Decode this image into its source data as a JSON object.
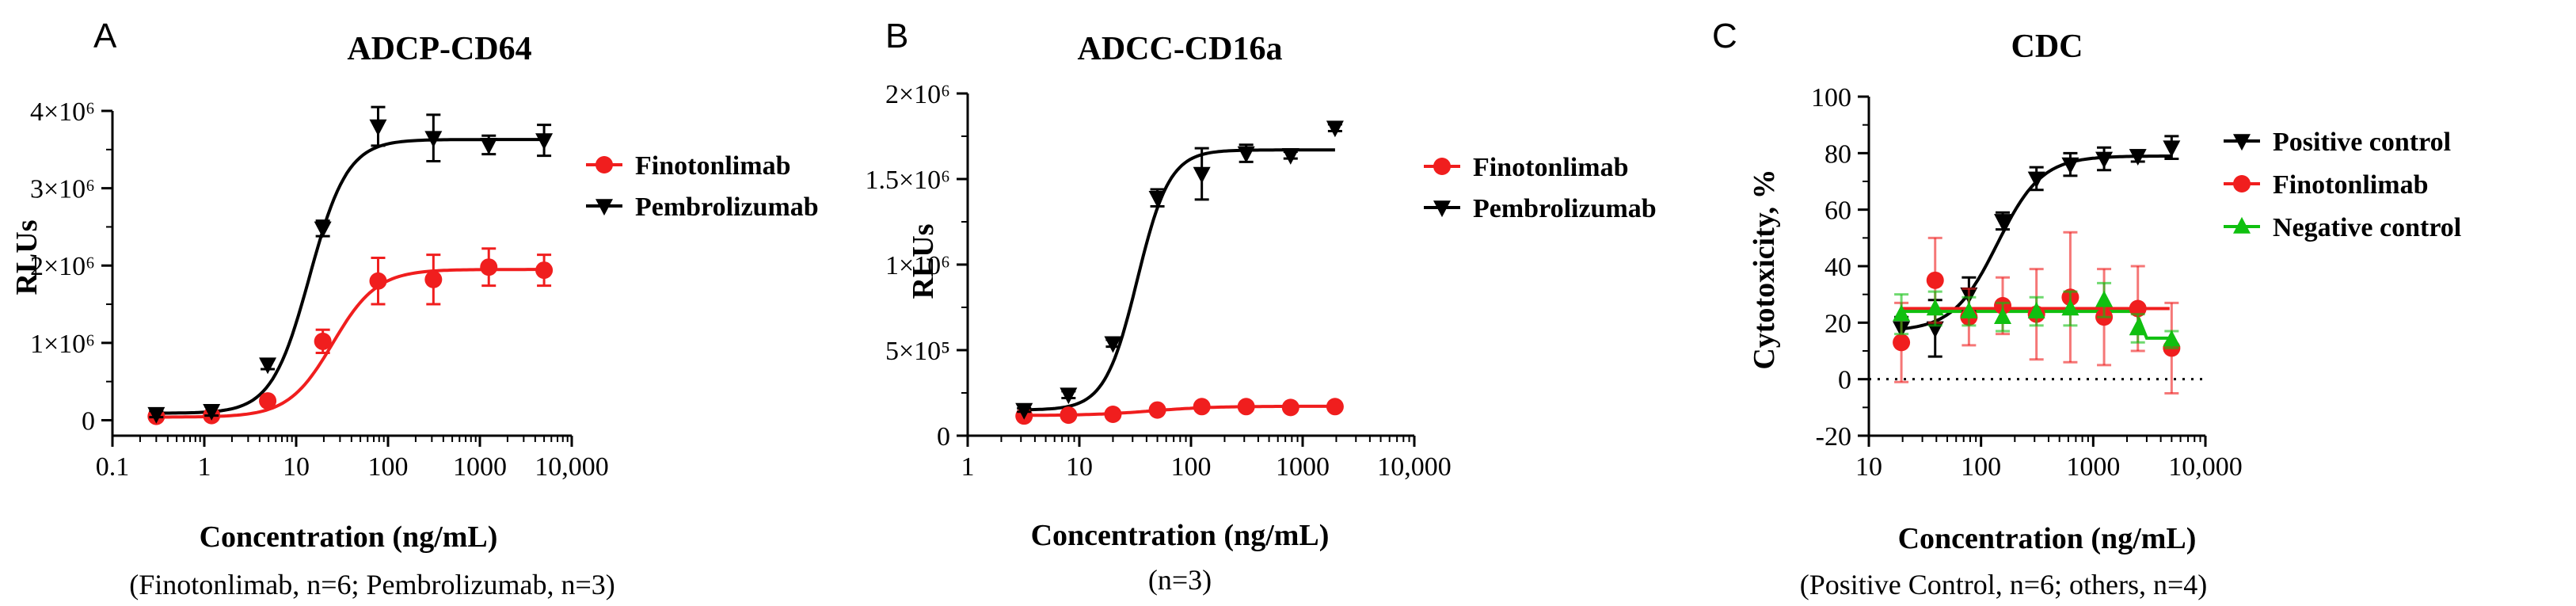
{
  "chart_data": [
    {
      "type": "line",
      "panel_letter": "A",
      "title": "ADCP-CD64",
      "xlabel": "Concentration (ng/mL)",
      "ylabel": "RLUs",
      "caption": "(Finotonlimab, n=6; Pembrolizumab, n=3)",
      "xscale": "log",
      "xlim": [
        0.1,
        10000
      ],
      "ylim": [
        -200000,
        4000000
      ],
      "x_ticks": [
        {
          "v": 0.1,
          "label": "0.1"
        },
        {
          "v": 1,
          "label": "1"
        },
        {
          "v": 10,
          "label": "10"
        },
        {
          "v": 100,
          "label": "100"
        },
        {
          "v": 1000,
          "label": "1000"
        },
        {
          "v": 10000,
          "label": "10,000"
        }
      ],
      "y_ticks": [
        {
          "v": 0,
          "label": "0"
        },
        {
          "v": 1000000,
          "label": "1×10⁶"
        },
        {
          "v": 2000000,
          "label": "2×10⁶"
        },
        {
          "v": 3000000,
          "label": "3×10⁶"
        },
        {
          "v": 4000000,
          "label": "4×10⁶"
        }
      ],
      "legend_position": "top-right",
      "series": [
        {
          "name": "Finotonlimab",
          "color": "#f01e1e",
          "marker": "circle",
          "x": [
            0.3,
            1.2,
            4.9,
            19.5,
            78,
            312,
            1250,
            5000
          ],
          "y": [
            50000,
            60000,
            250000,
            1020000,
            1800000,
            1820000,
            1980000,
            1940000
          ],
          "err": [
            50000,
            40000,
            40000,
            150000,
            300000,
            320000,
            240000,
            200000
          ],
          "fit": {
            "bottom": 40000,
            "top": 1950000,
            "ec50": 25,
            "hill": 1.8
          }
        },
        {
          "name": "Pembrolizumab",
          "color": "#000000",
          "marker": "triangle-down",
          "x": [
            0.3,
            1.2,
            4.9,
            19.5,
            78,
            312,
            1250,
            5000
          ],
          "y": [
            80000,
            120000,
            720000,
            2480000,
            3800000,
            3650000,
            3560000,
            3620000
          ],
          "err": [
            40000,
            60000,
            60000,
            100000,
            250000,
            300000,
            120000,
            200000
          ],
          "fit": {
            "bottom": 90000,
            "top": 3630000,
            "ec50": 14,
            "hill": 2.1
          }
        }
      ]
    },
    {
      "type": "line",
      "panel_letter": "B",
      "title": "ADCC-CD16a",
      "xlabel": "Concentration (ng/mL)",
      "ylabel": "RLUs",
      "caption": "(n=3)",
      "xscale": "log",
      "xlim": [
        1,
        10000
      ],
      "ylim": [
        0,
        2000000
      ],
      "x_ticks": [
        {
          "v": 1,
          "label": "1"
        },
        {
          "v": 10,
          "label": "10"
        },
        {
          "v": 100,
          "label": "100"
        },
        {
          "v": 1000,
          "label": "1000"
        },
        {
          "v": 10000,
          "label": "10,000"
        }
      ],
      "y_ticks": [
        {
          "v": 0,
          "label": "0"
        },
        {
          "v": 500000,
          "label": "5×10⁵"
        },
        {
          "v": 1000000,
          "label": "1×10⁶"
        },
        {
          "v": 1500000,
          "label": "1.5×10⁶"
        },
        {
          "v": 2000000,
          "label": "2×10⁶"
        }
      ],
      "legend_position": "top-right",
      "series": [
        {
          "name": "Finotonlimab",
          "color": "#f01e1e",
          "marker": "circle",
          "x": [
            3.2,
            8,
            20,
            50,
            125,
            312,
            780,
            1950
          ],
          "y": [
            115000,
            120000,
            125000,
            150000,
            170000,
            170000,
            165000,
            170000
          ],
          "err": [
            10000,
            10000,
            10000,
            15000,
            15000,
            15000,
            15000,
            15000
          ],
          "fit": {
            "bottom": 118000,
            "top": 172000,
            "ec50": 45,
            "hill": 1.6
          }
        },
        {
          "name": "Pembrolizumab",
          "color": "#000000",
          "marker": "triangle-down",
          "x": [
            3.2,
            8,
            20,
            50,
            125,
            312,
            780,
            1950
          ],
          "y": [
            150000,
            240000,
            540000,
            1390000,
            1530000,
            1650000,
            1640000,
            1800000
          ],
          "err": [
            10000,
            20000,
            20000,
            50000,
            150000,
            50000,
            20000,
            20000
          ],
          "fit": {
            "bottom": 150000,
            "top": 1670000,
            "ec50": 33,
            "hill": 3.0
          }
        }
      ]
    },
    {
      "type": "line",
      "panel_letter": "C",
      "title": "CDC",
      "xlabel": "Concentration (ng/mL)",
      "ylabel": "Cytotoxicity, %",
      "caption": "(Positive Control, n=6; others, n=4)",
      "xscale": "log",
      "xlim": [
        10,
        10000
      ],
      "ylim": [
        -20,
        100
      ],
      "x_ticks": [
        {
          "v": 10,
          "label": "10"
        },
        {
          "v": 100,
          "label": "100"
        },
        {
          "v": 1000,
          "label": "1000"
        },
        {
          "v": 10000,
          "label": "10,000"
        }
      ],
      "y_ticks": [
        {
          "v": -20,
          "label": "-20"
        },
        {
          "v": 0,
          "label": "0"
        },
        {
          "v": 20,
          "label": "20"
        },
        {
          "v": 40,
          "label": "40"
        },
        {
          "v": 60,
          "label": "60"
        },
        {
          "v": 80,
          "label": "80"
        },
        {
          "v": 100,
          "label": "100"
        }
      ],
      "reference_line_y": 0,
      "legend_position": "top-right",
      "series": [
        {
          "name": "Positive control",
          "color": "#000000",
          "marker": "triangle-down",
          "x": [
            19.5,
            39,
            78,
            156,
            312,
            625,
            1250,
            2500,
            5000
          ],
          "y": [
            18,
            18,
            30,
            56,
            71,
            76,
            78,
            79,
            82
          ],
          "err": [
            4,
            10,
            6,
            3,
            4,
            4,
            4,
            2,
            4
          ],
          "fit": {
            "bottom": 17,
            "top": 79,
            "ec50": 140,
            "hill": 2.2
          }
        },
        {
          "name": "Finotonlimab",
          "color": "#f01e1e",
          "marker": "circle",
          "x": [
            19.5,
            39,
            78,
            156,
            312,
            625,
            1250,
            2500,
            5000
          ],
          "y": [
            13,
            35,
            22,
            26,
            23,
            29,
            22,
            25,
            11
          ],
          "err": [
            14,
            15,
            10,
            10,
            16,
            23,
            17,
            15,
            16
          ],
          "fit": {
            "flat": [
              [
                19.5,
                25
              ],
              [
                4800,
                25
              ]
            ]
          }
        },
        {
          "name": "Negative control",
          "color": "#10c010",
          "marker": "triangle-up",
          "x": [
            19.5,
            39,
            78,
            156,
            312,
            625,
            1250,
            2500,
            5000
          ],
          "y": [
            23,
            25,
            24,
            22,
            24,
            25,
            28,
            18,
            14
          ],
          "err": [
            7,
            6,
            5,
            5,
            5,
            6,
            6,
            5,
            3
          ],
          "fit": {
            "flat": [
              [
                19.5,
                24
              ],
              [
                2400,
                24
              ],
              [
                3000,
                14.5
              ],
              [
                5000,
                14.5
              ]
            ]
          }
        }
      ]
    }
  ]
}
